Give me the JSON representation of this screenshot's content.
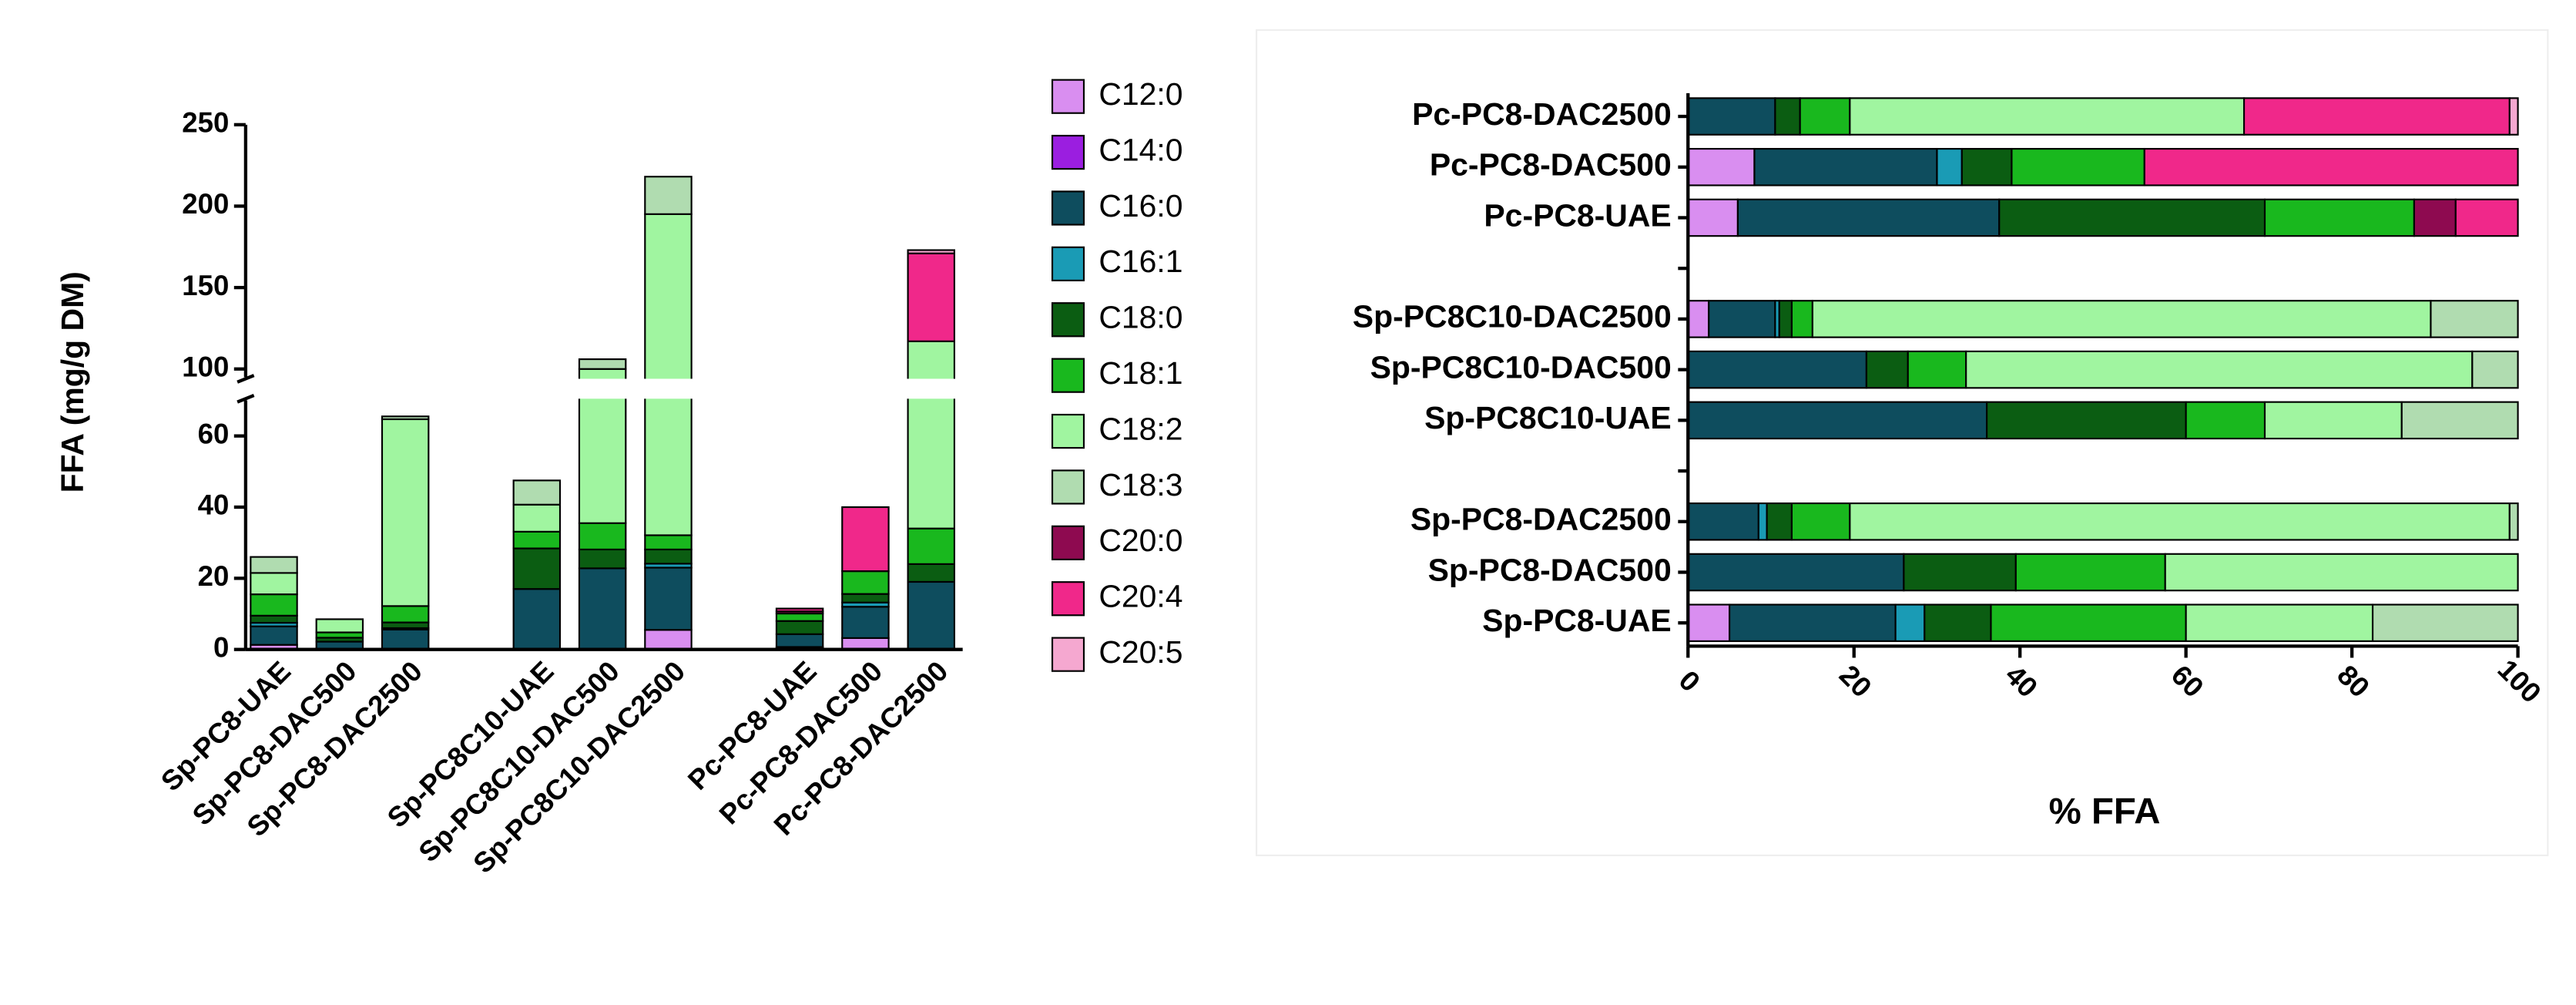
{
  "chart_data": [
    {
      "type": "bar",
      "stacked": true,
      "ylabel": "FFA (mg/g DM)",
      "categories": [
        "Sp-PC8-UAE",
        "Sp-PC8-DAC500",
        "Sp-PC8-DAC2500",
        null,
        "Sp-PC8C10-UAE",
        "Sp-PC8C10-DAC500",
        "Sp-PC8C10-DAC2500",
        null,
        "Pc-PC8-UAE",
        "Pc-PC8-DAC500",
        "Pc-PC8-DAC2500"
      ],
      "ylim": [
        0,
        250
      ],
      "ybreak": [
        70,
        95
      ],
      "yticks": [
        0,
        20,
        40,
        60,
        100,
        150,
        200,
        250
      ],
      "series": [
        {
          "name": "C12:0",
          "color": "#d98ef0",
          "values": [
            1.3,
            0,
            0,
            null,
            0,
            0,
            5.5,
            null,
            0.7,
            3.2,
            0
          ]
        },
        {
          "name": "C14:0",
          "color": "#9b1ee0",
          "values": [
            0,
            0,
            0,
            null,
            0,
            0,
            0,
            null,
            0,
            0,
            0
          ]
        },
        {
          "name": "C16:0",
          "color": "#0e4d5e",
          "values": [
            5.2,
            2.2,
            5.6,
            null,
            17,
            22.8,
            17.5,
            null,
            3.6,
            8.8,
            19
          ]
        },
        {
          "name": "C16:1",
          "color": "#1a9bb5",
          "values": [
            1,
            0,
            0.4,
            null,
            0,
            0,
            1.1,
            null,
            0,
            1.2,
            0
          ]
        },
        {
          "name": "C18:0",
          "color": "#0b5d12",
          "values": [
            2,
            1.1,
            1.6,
            null,
            11.4,
            5.3,
            4,
            null,
            3.7,
            2.4,
            5
          ]
        },
        {
          "name": "C18:1",
          "color": "#19b81e",
          "values": [
            6,
            1.5,
            4.6,
            null,
            4.7,
            7.4,
            4,
            null,
            2.1,
            6.4,
            10
          ]
        },
        {
          "name": "C18:2",
          "color": "#a0f5a0",
          "values": [
            6,
            3.7,
            52.5,
            null,
            7.6,
            64.5,
            163,
            null,
            0,
            0,
            83
          ]
        },
        {
          "name": "C18:3",
          "color": "#b0dcb0",
          "values": [
            4.5,
            0,
            0.8,
            null,
            6.8,
            6,
            23,
            null,
            0,
            0,
            0
          ]
        },
        {
          "name": "C20:0",
          "color": "#8e0a50",
          "values": [
            0,
            0,
            0,
            null,
            0,
            0,
            0,
            null,
            0.6,
            0,
            0
          ]
        },
        {
          "name": "C20:4",
          "color": "#f0288a",
          "values": [
            0,
            0,
            0,
            null,
            0,
            0,
            0,
            null,
            0.8,
            18,
            54
          ]
        },
        {
          "name": "C20:5",
          "color": "#f5a8d0",
          "values": [
            0,
            0,
            0,
            null,
            0,
            0,
            0,
            null,
            0,
            0,
            2
          ]
        }
      ]
    },
    {
      "type": "barh",
      "stacked": true,
      "xlabel": "% FFA",
      "categories": [
        "Pc-PC8-DAC2500",
        "Pc-PC8-DAC500",
        "Pc-PC8-UAE",
        null,
        "Sp-PC8C10-DAC2500",
        "Sp-PC8C10-DAC500",
        "Sp-PC8C10-UAE",
        null,
        "Sp-PC8-DAC2500",
        "Sp-PC8-DAC500",
        "Sp-PC8-UAE"
      ],
      "xlim": [
        0,
        100
      ],
      "xticks": [
        0,
        20,
        40,
        60,
        80,
        100
      ],
      "series": [
        {
          "values": [
            0,
            8,
            6,
            null,
            2.5,
            0,
            0,
            null,
            0,
            0,
            5
          ]
        },
        {
          "values": [
            0,
            0,
            0,
            null,
            0,
            0,
            0,
            null,
            0,
            0,
            0
          ]
        },
        {
          "values": [
            10.5,
            22,
            31.5,
            null,
            8,
            21.5,
            36,
            null,
            8.5,
            26,
            20
          ]
        },
        {
          "values": [
            0,
            3,
            0,
            null,
            0.5,
            0,
            0,
            null,
            1,
            0,
            3.5
          ]
        },
        {
          "values": [
            3,
            6,
            32,
            null,
            1.5,
            5,
            24,
            null,
            3,
            13.5,
            8
          ]
        },
        {
          "values": [
            6,
            16,
            18,
            null,
            2.5,
            7,
            9.5,
            null,
            7,
            18,
            23.5
          ]
        },
        {
          "values": [
            47.5,
            0,
            0,
            null,
            74.5,
            61,
            16.5,
            null,
            79.5,
            42.5,
            22.5
          ]
        },
        {
          "values": [
            0,
            0,
            0,
            null,
            10.5,
            5.5,
            14,
            null,
            1,
            0,
            17.5
          ]
        },
        {
          "values": [
            0,
            0,
            5,
            null,
            0,
            0,
            0,
            null,
            0,
            0,
            0
          ]
        },
        {
          "values": [
            32,
            45,
            7.5,
            null,
            0,
            0,
            0,
            null,
            0,
            0,
            0
          ]
        },
        {
          "values": [
            1,
            0,
            0,
            null,
            0,
            0,
            0,
            null,
            0,
            0,
            0
          ]
        }
      ]
    }
  ]
}
